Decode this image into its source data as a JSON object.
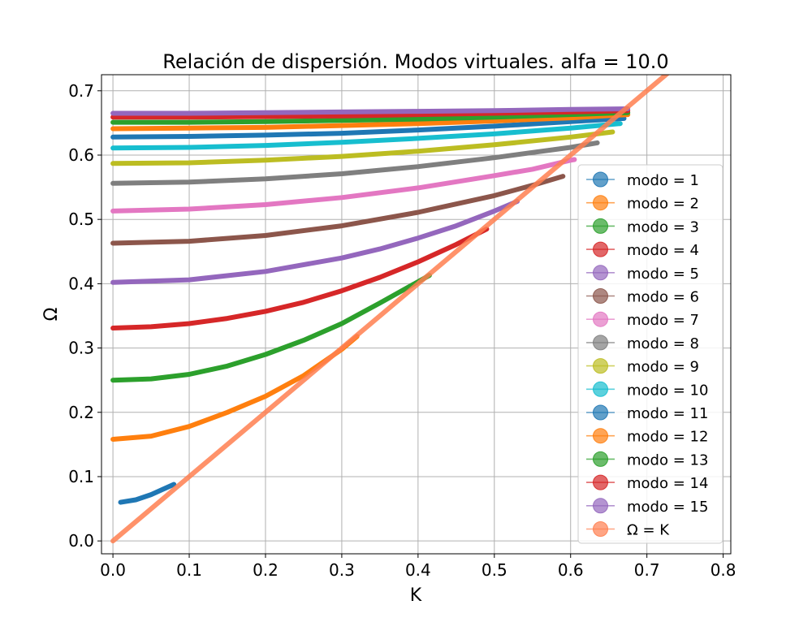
{
  "chart_data": {
    "type": "line",
    "title": "Relación de dispersión. Modos virtuales. alfa = 10.0",
    "xlabel": "K",
    "ylabel": "Ω",
    "xlim": [
      -0.015,
      0.81
    ],
    "ylim": [
      -0.02,
      0.725
    ],
    "xticks": [
      0.0,
      0.1,
      0.2,
      0.3,
      0.4,
      0.5,
      0.6,
      0.7,
      0.8
    ],
    "xtick_labels": [
      "0.0",
      "0.1",
      "0.2",
      "0.3",
      "0.4",
      "0.5",
      "0.6",
      "0.7",
      "0.8"
    ],
    "yticks": [
      0.0,
      0.1,
      0.2,
      0.3,
      0.4,
      0.5,
      0.6,
      0.7
    ],
    "ytick_labels": [
      "0.0",
      "0.1",
      "0.2",
      "0.3",
      "0.4",
      "0.5",
      "0.6",
      "0.7"
    ],
    "grid": true,
    "legend_position": "right",
    "series": [
      {
        "name": "modo = 1",
        "color": "#1f77b4",
        "x": [
          0.01,
          0.03,
          0.05,
          0.065,
          0.08
        ],
        "y": [
          0.06,
          0.064,
          0.072,
          0.08,
          0.088
        ]
      },
      {
        "name": "modo = 2",
        "color": "#ff7f0e",
        "x": [
          0.0,
          0.05,
          0.1,
          0.15,
          0.2,
          0.25,
          0.3,
          0.32
        ],
        "y": [
          0.158,
          0.163,
          0.178,
          0.2,
          0.225,
          0.257,
          0.298,
          0.318
        ]
      },
      {
        "name": "modo = 3",
        "color": "#2ca02c",
        "x": [
          0.0,
          0.05,
          0.1,
          0.15,
          0.2,
          0.25,
          0.3,
          0.35,
          0.415
        ],
        "y": [
          0.25,
          0.252,
          0.259,
          0.272,
          0.29,
          0.312,
          0.338,
          0.37,
          0.413
        ]
      },
      {
        "name": "modo = 4",
        "color": "#d62728",
        "x": [
          0.0,
          0.05,
          0.1,
          0.15,
          0.2,
          0.25,
          0.3,
          0.35,
          0.4,
          0.45,
          0.49
        ],
        "y": [
          0.331,
          0.333,
          0.338,
          0.346,
          0.357,
          0.371,
          0.389,
          0.41,
          0.434,
          0.461,
          0.485
        ]
      },
      {
        "name": "modo = 5",
        "color": "#9467bd",
        "x": [
          0.0,
          0.1,
          0.2,
          0.3,
          0.35,
          0.4,
          0.45,
          0.5,
          0.53
        ],
        "y": [
          0.402,
          0.406,
          0.419,
          0.44,
          0.454,
          0.471,
          0.49,
          0.513,
          0.528
        ]
      },
      {
        "name": "modo = 6",
        "color": "#8c564b",
        "x": [
          0.0,
          0.1,
          0.2,
          0.3,
          0.4,
          0.5,
          0.55,
          0.59
        ],
        "y": [
          0.463,
          0.466,
          0.475,
          0.49,
          0.511,
          0.537,
          0.553,
          0.567
        ]
      },
      {
        "name": "modo = 7",
        "color": "#e377c2",
        "x": [
          0.0,
          0.1,
          0.2,
          0.3,
          0.4,
          0.5,
          0.55,
          0.6,
          0.605
        ],
        "y": [
          0.513,
          0.516,
          0.523,
          0.534,
          0.549,
          0.568,
          0.578,
          0.592,
          0.593
        ]
      },
      {
        "name": "modo = 8",
        "color": "#7f7f7f",
        "x": [
          0.0,
          0.1,
          0.2,
          0.3,
          0.4,
          0.5,
          0.6,
          0.635
        ],
        "y": [
          0.556,
          0.558,
          0.563,
          0.571,
          0.582,
          0.596,
          0.612,
          0.619
        ]
      },
      {
        "name": "modo = 9",
        "color": "#bcbd22",
        "x": [
          0.0,
          0.1,
          0.2,
          0.3,
          0.4,
          0.5,
          0.6,
          0.655
        ],
        "y": [
          0.587,
          0.588,
          0.592,
          0.598,
          0.606,
          0.616,
          0.628,
          0.636
        ]
      },
      {
        "name": "modo = 10",
        "color": "#17becf",
        "x": [
          0.0,
          0.1,
          0.2,
          0.3,
          0.4,
          0.5,
          0.6,
          0.665
        ],
        "y": [
          0.611,
          0.612,
          0.615,
          0.62,
          0.626,
          0.633,
          0.642,
          0.649
        ]
      },
      {
        "name": "modo = 11",
        "color": "#1f77b4",
        "x": [
          0.0,
          0.1,
          0.2,
          0.3,
          0.4,
          0.5,
          0.6,
          0.67
        ],
        "y": [
          0.628,
          0.629,
          0.631,
          0.634,
          0.639,
          0.645,
          0.652,
          0.657
        ]
      },
      {
        "name": "modo = 12",
        "color": "#ff7f0e",
        "x": [
          0.0,
          0.1,
          0.2,
          0.3,
          0.4,
          0.5,
          0.6,
          0.675
        ],
        "y": [
          0.641,
          0.642,
          0.643,
          0.646,
          0.649,
          0.653,
          0.658,
          0.663
        ]
      },
      {
        "name": "modo = 13",
        "color": "#2ca02c",
        "x": [
          0.0,
          0.1,
          0.2,
          0.3,
          0.4,
          0.5,
          0.6,
          0.675
        ],
        "y": [
          0.651,
          0.651,
          0.652,
          0.654,
          0.656,
          0.659,
          0.663,
          0.666
        ]
      },
      {
        "name": "modo = 14",
        "color": "#d62728",
        "x": [
          0.0,
          0.1,
          0.2,
          0.3,
          0.4,
          0.5,
          0.6,
          0.675
        ],
        "y": [
          0.659,
          0.659,
          0.66,
          0.661,
          0.663,
          0.665,
          0.667,
          0.669
        ]
      },
      {
        "name": "modo = 15",
        "color": "#9467bd",
        "x": [
          0.0,
          0.1,
          0.2,
          0.3,
          0.4,
          0.5,
          0.6,
          0.675
        ],
        "y": [
          0.665,
          0.665,
          0.666,
          0.667,
          0.668,
          0.669,
          0.671,
          0.672
        ]
      },
      {
        "name": "Ω = K",
        "color": "#ff7f50",
        "x": [
          0.0,
          0.735
        ],
        "y": [
          0.0,
          0.735
        ]
      }
    ]
  }
}
